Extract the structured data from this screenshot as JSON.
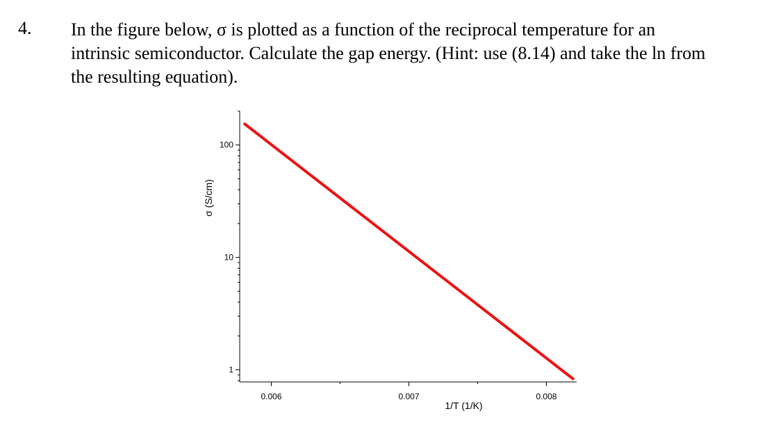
{
  "problem": {
    "number": "4.",
    "lines": [
      "In the figure below, σ is plotted as a function of the reciprocal temperature for an",
      "intrinsic semiconductor.  Calculate the gap energy. (Hint: use (8.14) and take the ln from",
      "the resulting equation)."
    ]
  },
  "chart_data": {
    "type": "line",
    "title": "",
    "xlabel": "1/T  (1/K)",
    "ylabel": "σ (S/cm)",
    "x_tick_labels": [
      "0.006",
      "0.007",
      "0.008"
    ],
    "x_ticks": [
      0.006,
      0.007,
      0.008
    ],
    "y_tick_labels": [
      "100",
      "10",
      "1"
    ],
    "y_ticks": [
      100,
      10,
      1
    ],
    "y_scale": "log",
    "xlim": [
      0.00577,
      0.00822
    ],
    "ylim": [
      0.78,
      200
    ],
    "grid": false,
    "series": [
      {
        "color": "#ee1111",
        "x": [
          0.0058,
          0.0082
        ],
        "y": [
          156,
          0.82
        ]
      }
    ]
  }
}
